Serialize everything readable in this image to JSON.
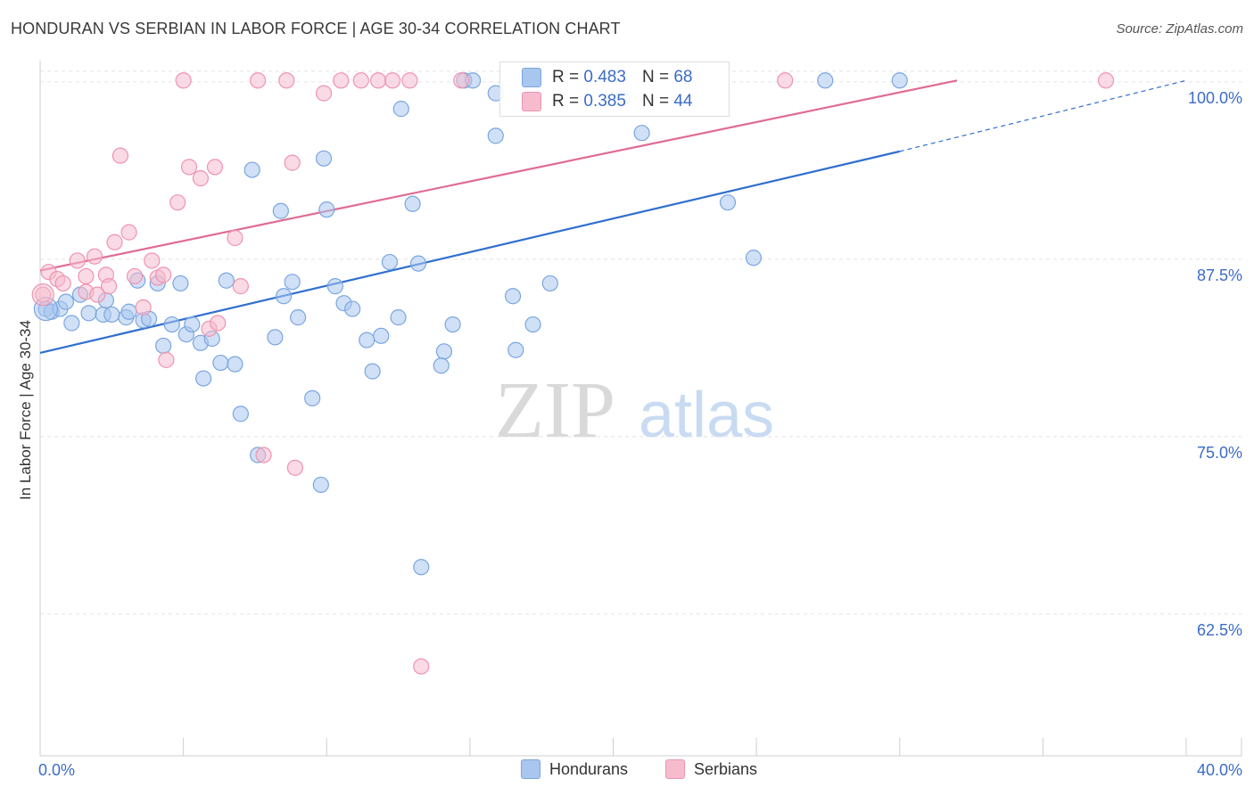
{
  "title": "HONDURAN VS SERBIAN IN LABOR FORCE | AGE 30-34 CORRELATION CHART",
  "source": "Source: ZipAtlas.com",
  "colors": {
    "honduran_fill": "#a9c6ee",
    "honduran_stroke": "#7aa6e0",
    "honduran_line": "#2f6fcf",
    "serbian_fill": "#f6bccd",
    "serbian_stroke": "#ee94b0",
    "serbian_line": "#e06b93",
    "axis_label": "#3b6cc8",
    "watermark": "#d8d8d8"
  },
  "legend": {
    "r_label": "R =",
    "n_label": "N =",
    "honduran_r": "0.483",
    "honduran_n": "68",
    "serbian_r": "0.385",
    "serbian_n": "44"
  },
  "bottom_legend": {
    "honduran": "Hondurans",
    "serbian": "Serbians"
  },
  "watermark": {
    "zip": "ZIP",
    "atlas": "atlas"
  },
  "chart_data": {
    "type": "scatter",
    "title": "HONDURAN VS SERBIAN IN LABOR FORCE | AGE 30-34 CORRELATION CHART",
    "xlabel": "",
    "ylabel": "In Labor Force | Age 30-34",
    "xlim": [
      0,
      40
    ],
    "ylim": [
      52.5,
      101.5
    ],
    "x_tick_labels": [
      "0.0%",
      "40.0%"
    ],
    "y_ticks": [
      62.5,
      75.0,
      87.5,
      100.0
    ],
    "y_tick_labels": [
      "62.5%",
      "75.0%",
      "87.5%",
      "100.0%"
    ],
    "grid": true,
    "legend_position": "top-center",
    "series": [
      {
        "name": "Hondurans",
        "r": 0.483,
        "n": 68,
        "trend": {
          "x0": 0,
          "y0": 80.9,
          "x1": 30,
          "y1": 95.1,
          "dashed_to_x": 40,
          "dashed_to_y": 100.1
        },
        "points": [
          [
            0.2,
            84.0
          ],
          [
            0.4,
            83.8
          ],
          [
            0.7,
            84.0
          ],
          [
            0.9,
            84.5
          ],
          [
            1.1,
            83.0
          ],
          [
            1.4,
            85.0
          ],
          [
            1.7,
            83.7
          ],
          [
            2.2,
            83.6
          ],
          [
            2.3,
            84.6
          ],
          [
            2.5,
            83.6
          ],
          [
            3.0,
            83.4
          ],
          [
            3.1,
            83.8
          ],
          [
            3.4,
            86.0
          ],
          [
            3.6,
            83.2
          ],
          [
            3.8,
            83.3
          ],
          [
            4.1,
            85.8
          ],
          [
            4.3,
            81.4
          ],
          [
            4.6,
            82.9
          ],
          [
            4.9,
            85.8
          ],
          [
            5.1,
            82.2
          ],
          [
            5.3,
            82.9
          ],
          [
            5.6,
            81.6
          ],
          [
            5.7,
            79.1
          ],
          [
            6.0,
            81.9
          ],
          [
            6.3,
            80.2
          ],
          [
            6.5,
            86.0
          ],
          [
            6.8,
            80.1
          ],
          [
            7.0,
            76.6
          ],
          [
            7.4,
            93.8
          ],
          [
            7.6,
            73.7
          ],
          [
            8.2,
            82.0
          ],
          [
            8.4,
            90.9
          ],
          [
            8.5,
            84.9
          ],
          [
            8.8,
            85.9
          ],
          [
            9.0,
            83.4
          ],
          [
            9.5,
            77.7
          ],
          [
            9.9,
            94.6
          ],
          [
            9.8,
            71.6
          ],
          [
            10.3,
            85.6
          ],
          [
            10.6,
            84.4
          ],
          [
            10.9,
            84.0
          ],
          [
            11.4,
            81.8
          ],
          [
            11.6,
            79.6
          ],
          [
            11.9,
            82.1
          ],
          [
            12.2,
            87.3
          ],
          [
            12.5,
            83.4
          ],
          [
            12.6,
            98.1
          ],
          [
            13.0,
            91.4
          ],
          [
            13.2,
            87.2
          ],
          [
            13.3,
            65.8
          ],
          [
            14.1,
            81.0
          ],
          [
            14.4,
            82.9
          ],
          [
            14.8,
            100.1
          ],
          [
            15.1,
            100.1
          ],
          [
            15.9,
            99.2
          ],
          [
            15.9,
            96.2
          ],
          [
            16.5,
            84.9
          ],
          [
            16.6,
            81.1
          ],
          [
            17.2,
            82.9
          ],
          [
            17.8,
            85.8
          ],
          [
            20.3,
            98.8
          ],
          [
            21.0,
            96.4
          ],
          [
            24.0,
            91.5
          ],
          [
            24.9,
            87.6
          ],
          [
            27.4,
            100.1
          ],
          [
            30.0,
            100.1
          ],
          [
            10.0,
            91.0
          ],
          [
            14.0,
            80.0
          ]
        ]
      },
      {
        "name": "Serbians",
        "r": 0.385,
        "n": 44,
        "trend": {
          "x0": 0,
          "y0": 86.7,
          "x1": 32,
          "y1": 100.1
        },
        "points": [
          [
            0.1,
            85.0
          ],
          [
            0.3,
            86.6
          ],
          [
            0.6,
            86.1
          ],
          [
            0.8,
            85.8
          ],
          [
            1.3,
            87.4
          ],
          [
            1.6,
            86.3
          ],
          [
            1.6,
            85.2
          ],
          [
            1.9,
            87.7
          ],
          [
            2.0,
            85.0
          ],
          [
            2.3,
            86.4
          ],
          [
            2.4,
            85.6
          ],
          [
            2.6,
            88.7
          ],
          [
            2.8,
            94.8
          ],
          [
            3.1,
            89.4
          ],
          [
            3.3,
            86.3
          ],
          [
            3.6,
            84.1
          ],
          [
            3.9,
            87.4
          ],
          [
            4.1,
            86.2
          ],
          [
            4.3,
            86.4
          ],
          [
            4.4,
            80.4
          ],
          [
            4.8,
            91.5
          ],
          [
            5.0,
            100.1
          ],
          [
            5.2,
            94.0
          ],
          [
            5.6,
            93.2
          ],
          [
            5.9,
            82.6
          ],
          [
            6.1,
            94.0
          ],
          [
            6.2,
            83.0
          ],
          [
            6.8,
            89.0
          ],
          [
            7.0,
            85.6
          ],
          [
            7.6,
            100.1
          ],
          [
            7.8,
            73.7
          ],
          [
            8.6,
            100.1
          ],
          [
            8.8,
            94.3
          ],
          [
            8.9,
            72.8
          ],
          [
            9.9,
            99.2
          ],
          [
            10.5,
            100.1
          ],
          [
            11.2,
            100.1
          ],
          [
            11.8,
            100.1
          ],
          [
            12.3,
            100.1
          ],
          [
            12.9,
            100.1
          ],
          [
            13.3,
            58.8
          ],
          [
            14.7,
            100.1
          ],
          [
            26.0,
            100.1
          ],
          [
            37.2,
            100.1
          ]
        ]
      }
    ]
  }
}
